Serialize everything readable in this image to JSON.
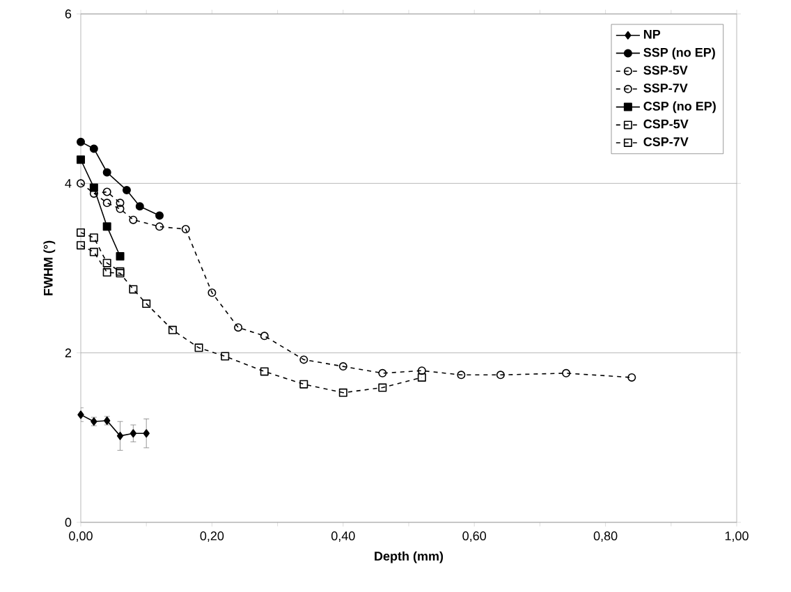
{
  "chart_data": {
    "type": "line",
    "xlabel": "Depth (mm)",
    "ylabel": "FWHM (°)",
    "xlim": [
      0,
      1.0
    ],
    "ylim": [
      0,
      6
    ],
    "xticks": [
      {
        "value": 0,
        "label": "0,00"
      },
      {
        "value": 0.2,
        "label": "0,20"
      },
      {
        "value": 0.4,
        "label": "0,40"
      },
      {
        "value": 0.6,
        "label": "0,60"
      },
      {
        "value": 0.8,
        "label": "0,80"
      },
      {
        "value": 1.0,
        "label": "1,00"
      }
    ],
    "yticks": [
      0,
      2,
      4,
      6
    ],
    "grid": "y",
    "legend": "top right",
    "series": [
      {
        "name": "NP",
        "color": "#000000",
        "marker": "diamond",
        "line_style": "solid",
        "x": [
          0,
          0.02,
          0.04,
          0.06,
          0.08,
          0.1
        ],
        "values": [
          1.27,
          1.19,
          1.2,
          1.02,
          1.05,
          1.05
        ],
        "errors": [
          0.08,
          0.05,
          0.05,
          0.17,
          0.1,
          0.17
        ]
      },
      {
        "name": "SSP (no EP)",
        "color": "#000000",
        "marker": "circle",
        "line_style": "solid",
        "x": [
          0,
          0.02,
          0.04,
          0.07,
          0.09,
          0.12
        ],
        "values": [
          4.49,
          4.41,
          4.13,
          3.92,
          3.73,
          3.62
        ]
      },
      {
        "name": "SSP-5V",
        "color": "#000000",
        "marker": "circle",
        "line_style": "dashed",
        "x": [
          0.02,
          0.04,
          0.06
        ],
        "values": [
          3.88,
          3.9,
          3.77
        ]
      },
      {
        "name": "SSP-7V",
        "color": "#000000",
        "marker": "circle",
        "line_style": "dashed",
        "x": [
          0,
          0.04,
          0.06,
          0.08,
          0.12,
          0.16,
          0.2,
          0.24,
          0.28,
          0.34,
          0.4,
          0.46,
          0.52,
          0.58,
          0.64,
          0.74,
          0.84
        ],
        "values": [
          4.0,
          3.77,
          3.7,
          3.57,
          3.49,
          3.46,
          2.71,
          2.3,
          2.2,
          1.92,
          1.84,
          1.76,
          1.79,
          1.74,
          1.74,
          1.76,
          1.71
        ]
      },
      {
        "name": "CSP (no EP)",
        "color": "#000000",
        "marker": "square",
        "line_style": "solid",
        "x": [
          0,
          0.02,
          0.04,
          0.06
        ],
        "values": [
          4.28,
          3.95,
          3.49,
          3.14
        ]
      },
      {
        "name": "CSP-5V",
        "color": "#000000",
        "marker": "square",
        "line_style": "dashed",
        "x": [
          0,
          0.02,
          0.04,
          0.06
        ],
        "values": [
          3.42,
          3.36,
          3.06,
          2.96
        ]
      },
      {
        "name": "CSP-7V",
        "color": "#000000",
        "marker": "square",
        "line_style": "dashed",
        "x": [
          0,
          0.02,
          0.04,
          0.06,
          0.08,
          0.1,
          0.14,
          0.18,
          0.22,
          0.28,
          0.34,
          0.4,
          0.46,
          0.52
        ],
        "values": [
          3.27,
          3.19,
          2.95,
          2.94,
          2.75,
          2.58,
          2.27,
          2.06,
          1.96,
          1.78,
          1.63,
          1.53,
          1.59,
          1.71
        ]
      }
    ]
  }
}
